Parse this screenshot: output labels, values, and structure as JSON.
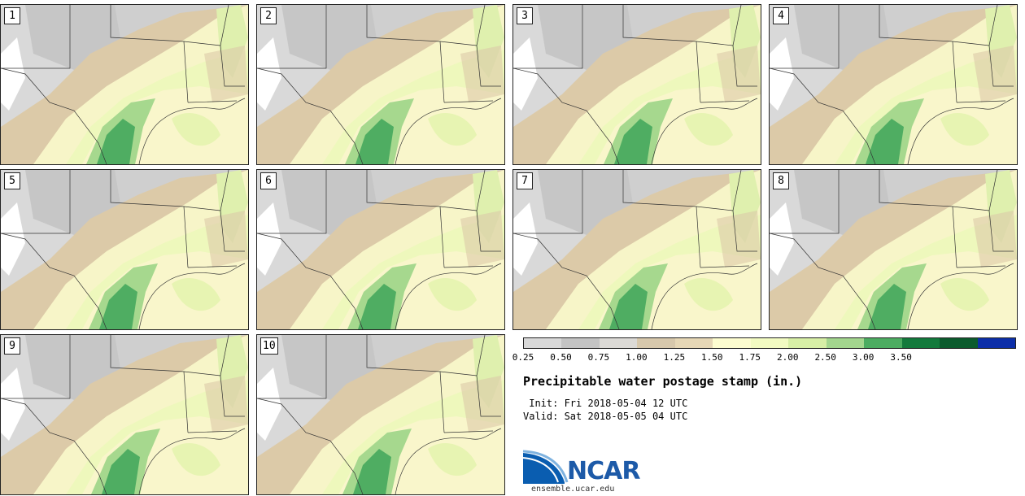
{
  "panels": [
    {
      "label": "1"
    },
    {
      "label": "2"
    },
    {
      "label": "3"
    },
    {
      "label": "4"
    },
    {
      "label": "5"
    },
    {
      "label": "6"
    },
    {
      "label": "7"
    },
    {
      "label": "8"
    },
    {
      "label": "9"
    },
    {
      "label": "10"
    }
  ],
  "colorbar": {
    "colors": [
      "#d9d9d9",
      "#c4c4c4",
      "#dcdad6",
      "#d7c8ac",
      "#e6d7b6",
      "#fdfdd0",
      "#f2fbc2",
      "#d7efa6",
      "#a3d68e",
      "#4cac61",
      "#137a3c",
      "#0b5b2d",
      "#0c2ea8"
    ],
    "ticks": [
      "0.25",
      "0.50",
      "0.75",
      "1.00",
      "1.25",
      "1.50",
      "1.75",
      "2.00",
      "2.50",
      "3.00",
      "3.50"
    ]
  },
  "title": "Precipitable water postage stamp (in.)",
  "init_line": " Init: Fri 2018-05-04 12 UTC",
  "valid_line": "Valid: Sat 2018-05-05 04 UTC",
  "logo": {
    "name": "ncar-logo",
    "text": "NCAR",
    "url": "ensemble.ucar.edu"
  }
}
